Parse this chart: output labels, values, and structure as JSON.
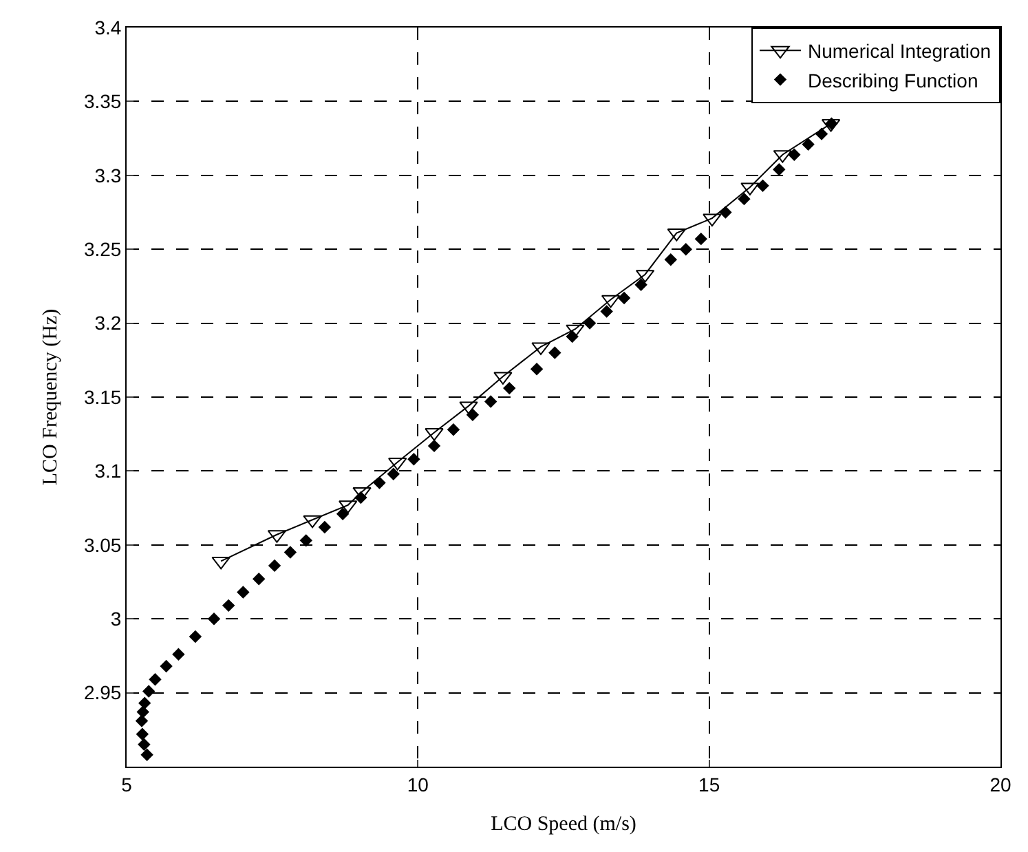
{
  "chart_data": {
    "type": "line",
    "xlabel": "LCO Speed (m/s)",
    "ylabel": "LCO Frequency (Hz)",
    "xlim": [
      5,
      20
    ],
    "xticks": [
      5,
      10,
      15,
      20
    ],
    "ylim": [
      2.9,
      3.4
    ],
    "yticks": [
      {
        "value": 2.9,
        "label": null
      },
      2.95,
      3,
      3.05,
      3.1,
      3.15,
      3.2,
      3.25,
      3.3,
      3.35,
      3.4
    ],
    "grid": true,
    "legend": "top right",
    "series": [
      {
        "name": "Numerical Integration",
        "marker": "triangle",
        "color": "#000000",
        "x": [
          6.62,
          7.58,
          8.19,
          8.8,
          9.04,
          9.65,
          10.28,
          10.87,
          11.46,
          12.11,
          12.7,
          13.31,
          13.9,
          14.44,
          15.05,
          15.7,
          16.26,
          17.09
        ],
        "values": [
          3.039,
          3.057,
          3.067,
          3.077,
          3.086,
          3.106,
          3.126,
          3.144,
          3.164,
          3.184,
          3.196,
          3.216,
          3.233,
          3.261,
          3.271,
          3.292,
          3.314,
          3.335
        ]
      },
      {
        "name": "Describing Function",
        "type": "scatter",
        "marker": "diamond",
        "color": "#000000",
        "x": [
          5.35,
          5.3,
          5.27,
          5.26,
          5.28,
          5.31,
          5.38,
          5.49,
          5.68,
          5.89,
          6.18,
          6.5,
          6.75,
          7.0,
          7.27,
          7.54,
          7.81,
          8.08,
          8.4,
          8.71,
          9.02,
          9.34,
          9.58,
          9.93,
          10.28,
          10.61,
          10.94,
          11.25,
          11.57,
          12.04,
          12.35,
          12.65,
          12.95,
          13.24,
          13.54,
          13.83,
          14.34,
          14.6,
          14.86,
          15.28,
          15.6,
          15.92,
          16.2,
          16.46,
          16.7,
          16.93,
          17.1
        ],
        "values": [
          2.908,
          2.915,
          2.922,
          2.931,
          2.937,
          2.943,
          2.951,
          2.959,
          2.968,
          2.976,
          2.988,
          3.0,
          3.009,
          3.018,
          3.027,
          3.036,
          3.045,
          3.053,
          3.062,
          3.071,
          3.082,
          3.092,
          3.098,
          3.108,
          3.117,
          3.128,
          3.138,
          3.147,
          3.156,
          3.169,
          3.18,
          3.191,
          3.2,
          3.208,
          3.217,
          3.226,
          3.243,
          3.25,
          3.257,
          3.275,
          3.284,
          3.293,
          3.304,
          3.314,
          3.321,
          3.328,
          3.335
        ]
      }
    ]
  }
}
